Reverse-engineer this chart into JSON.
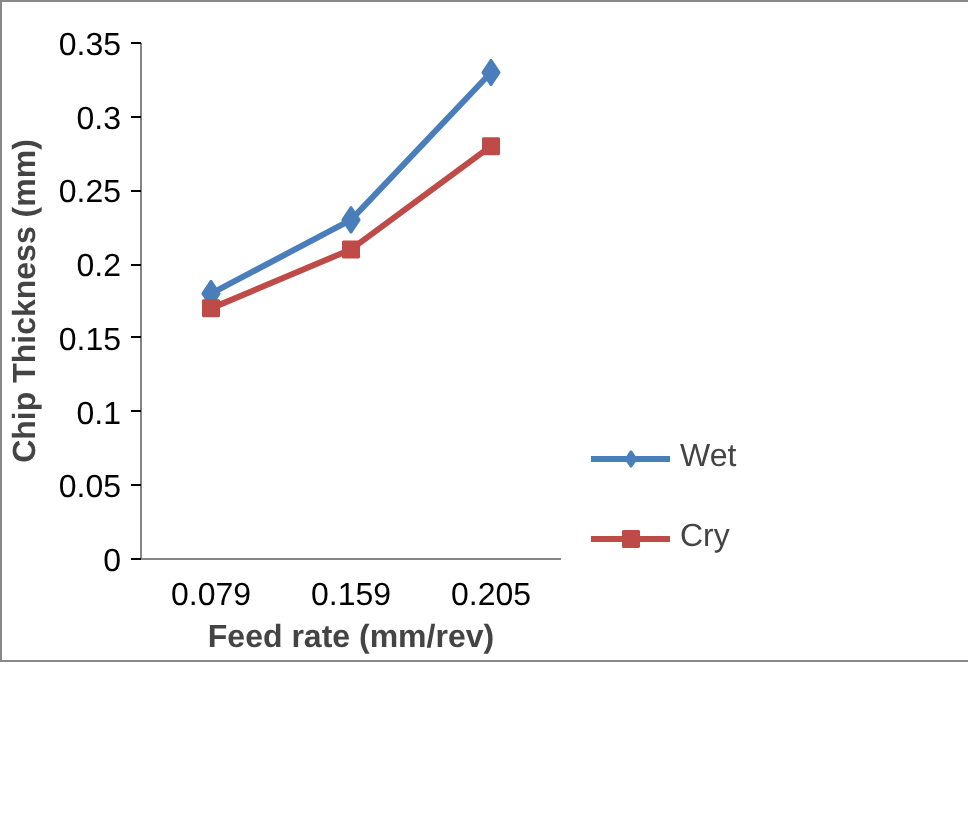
{
  "chart_data": {
    "type": "line",
    "xlabel": "Feed rate (mm/rev)",
    "ylabel": "Chip Thickness (mm)",
    "categories": [
      "0.079",
      "0.159",
      "0.205"
    ],
    "ylim": [
      0,
      0.35
    ],
    "yticks": [
      {
        "value": 0,
        "label": "0"
      },
      {
        "value": 0.05,
        "label": "0.05"
      },
      {
        "value": 0.1,
        "label": "0.1"
      },
      {
        "value": 0.15,
        "label": "0.15"
      },
      {
        "value": 0.2,
        "label": "0.2"
      },
      {
        "value": 0.25,
        "label": "0.25"
      },
      {
        "value": 0.3,
        "label": "0.3"
      },
      {
        "value": 0.35,
        "label": "0.35"
      }
    ],
    "grid": false,
    "legend": "right",
    "line_style": "solid",
    "series": [
      {
        "name": "Wet",
        "color": "#4a7ebb",
        "marker": "diamond",
        "values": [
          0.18,
          0.23,
          0.33
        ]
      },
      {
        "name": "Cry",
        "color": "#be4b48",
        "marker": "square",
        "values": [
          0.17,
          0.21,
          0.28
        ]
      }
    ]
  }
}
